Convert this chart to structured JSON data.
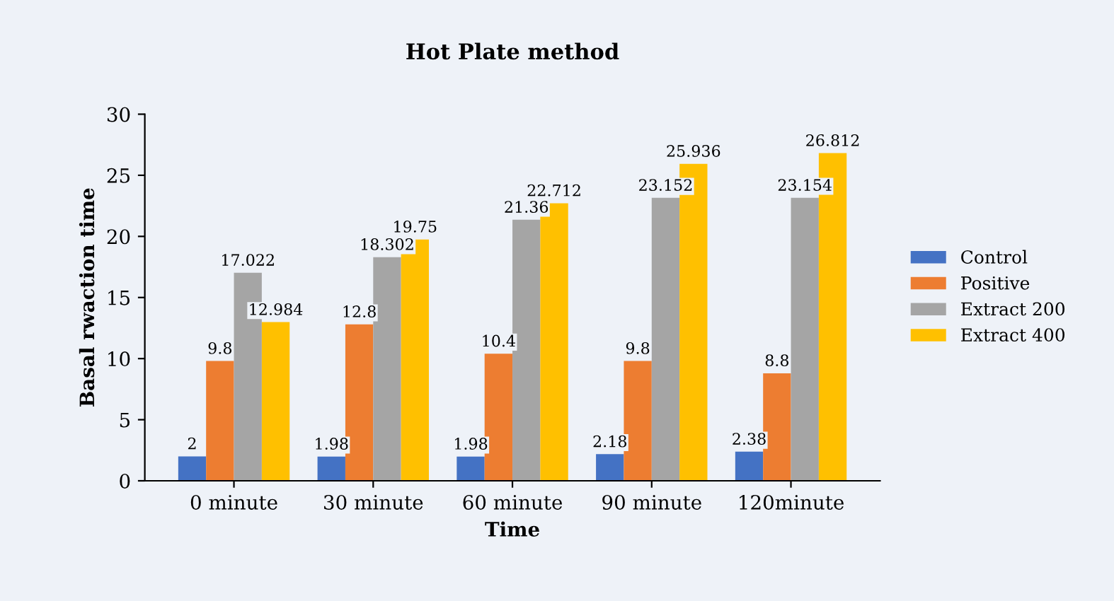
{
  "chart_data": {
    "type": "bar",
    "title": "Hot Plate method",
    "xlabel": "Time",
    "ylabel": "Basal rwaction time",
    "categories": [
      "0 minute",
      "30 minute",
      "60 minute",
      "90 minute",
      "120minute"
    ],
    "series": [
      {
        "name": "Control",
        "color": "#4472c4",
        "values": [
          2,
          1.98,
          1.98,
          2.18,
          2.38
        ]
      },
      {
        "name": "Positive",
        "color": "#ed7d31",
        "values": [
          9.8,
          12.8,
          10.4,
          9.8,
          8.8
        ]
      },
      {
        "name": "Extract 200",
        "color": "#a5a5a5",
        "values": [
          17.022,
          18.302,
          21.36,
          23.152,
          23.154
        ]
      },
      {
        "name": "Extract 400",
        "color": "#ffc000",
        "values": [
          12.984,
          19.75,
          22.712,
          25.936,
          26.812
        ]
      }
    ],
    "ylim": [
      0,
      30
    ],
    "yticks": [
      0,
      5,
      10,
      15,
      20,
      25,
      30
    ],
    "grid": false,
    "legend": "right",
    "data_labels": true
  }
}
